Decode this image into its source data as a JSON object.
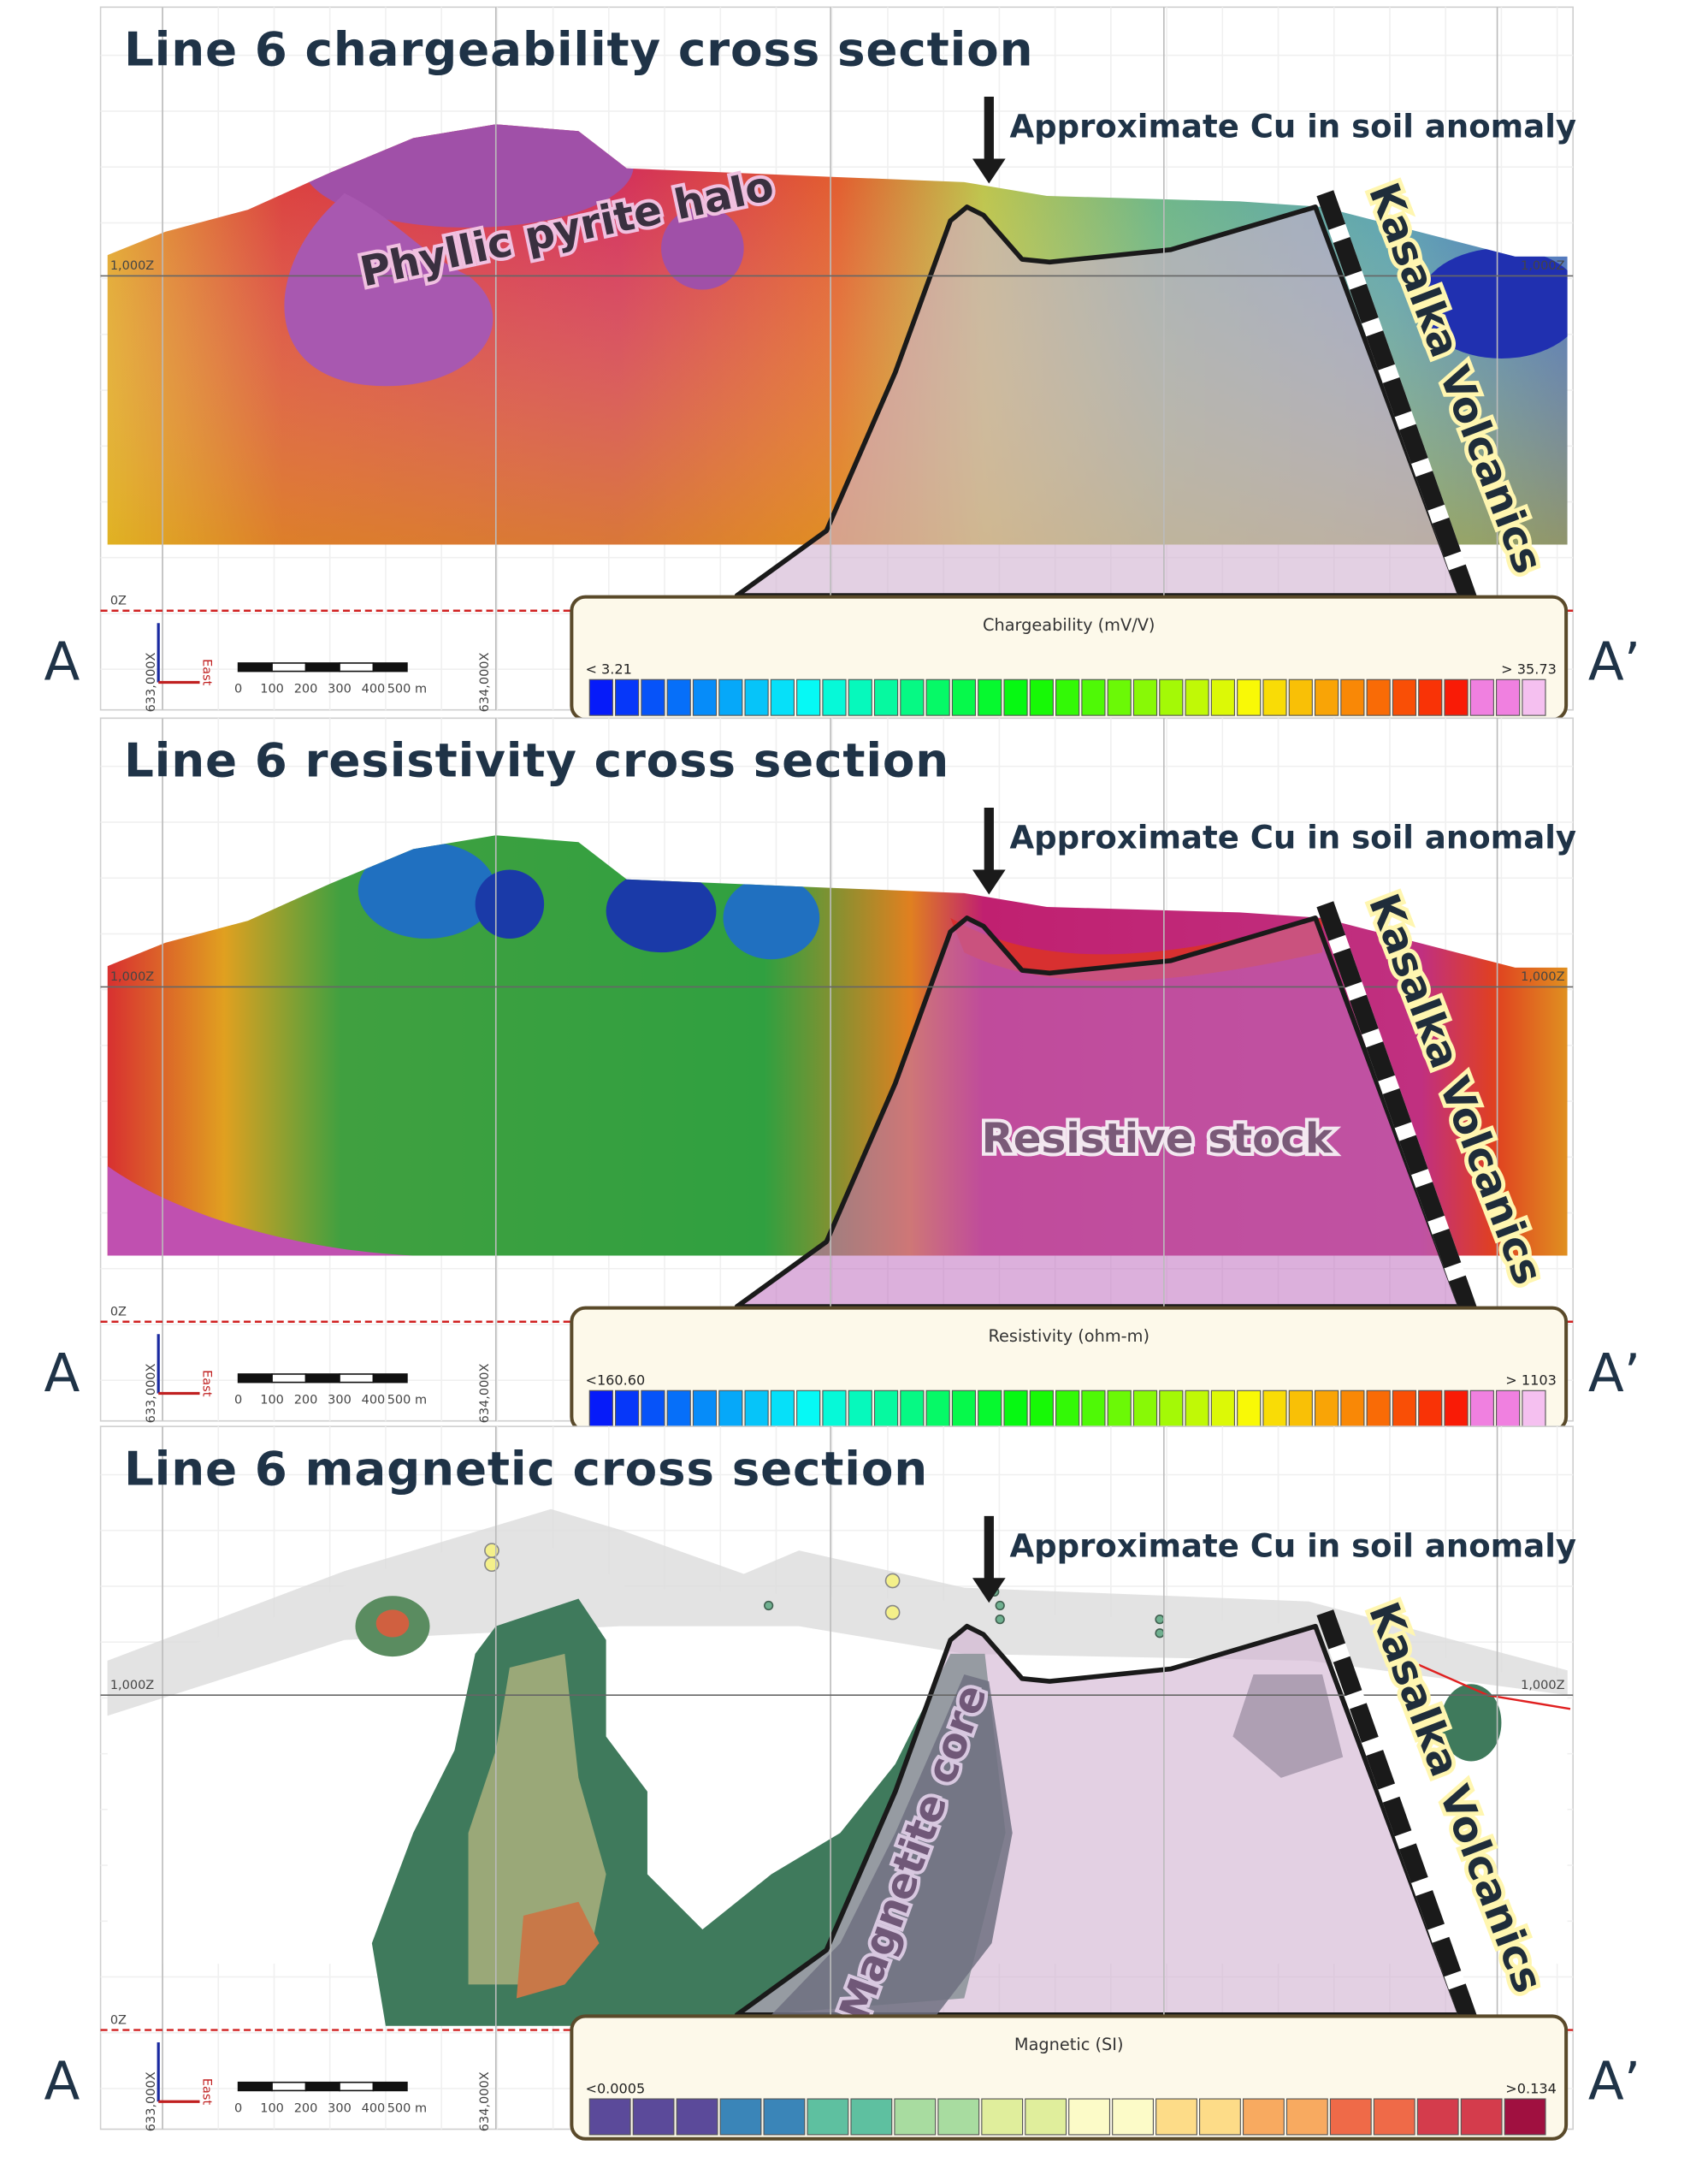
{
  "panels": [
    {
      "title": "Line 6 chargeability cross section",
      "anomaly_label": "Approximate Cu in soil anomaly",
      "zone_label": "Phyllic pyrite halo",
      "volcanics_label": "Kasalka Volcanics",
      "end_left": "A",
      "end_right": "A’",
      "elevation_labels": [
        "1,000Z",
        "0Z"
      ],
      "easting_labels": [
        "633,000X",
        "634,000X"
      ],
      "scale_labels": [
        "0",
        "100",
        "200",
        "300",
        "400",
        "500 m"
      ],
      "axis_label": "East",
      "legend": {
        "title": "Chargeability (mV/V)",
        "min_label": "< 3.21",
        "max_label": "> 35.73"
      }
    },
    {
      "title": "Line 6 resistivity cross section",
      "anomaly_label": "Approximate Cu in soil anomaly",
      "zone_label": "Resistive stock",
      "volcanics_label": "Kasalka Volcanics",
      "end_left": "A",
      "end_right": "A’",
      "elevation_labels": [
        "1,000Z",
        "0Z"
      ],
      "easting_labels": [
        "633,000X",
        "634,000X"
      ],
      "scale_labels": [
        "0",
        "100",
        "200",
        "300",
        "400",
        "500 m"
      ],
      "axis_label": "East",
      "legend": {
        "title": "Resistivity (ohm-m)",
        "min_label": "<160.60",
        "max_label": "> 1103"
      }
    },
    {
      "title": "Line 6 magnetic cross section",
      "anomaly_label": "Approximate Cu in soil anomaly",
      "zone_label": "Magnetite core",
      "volcanics_label": "Kasalka Volcanics",
      "end_left": "A",
      "end_right": "A’",
      "elevation_labels": [
        "1,000Z",
        "0Z"
      ],
      "easting_labels": [
        "633,000X",
        "634,000X"
      ],
      "scale_labels": [
        "0",
        "100",
        "200",
        "300",
        "400",
        "500 m"
      ],
      "axis_label": "East",
      "legend": {
        "title": "Magnetic (SI)",
        "min_label": "<0.0005",
        "max_label": ">0.134"
      }
    }
  ]
}
